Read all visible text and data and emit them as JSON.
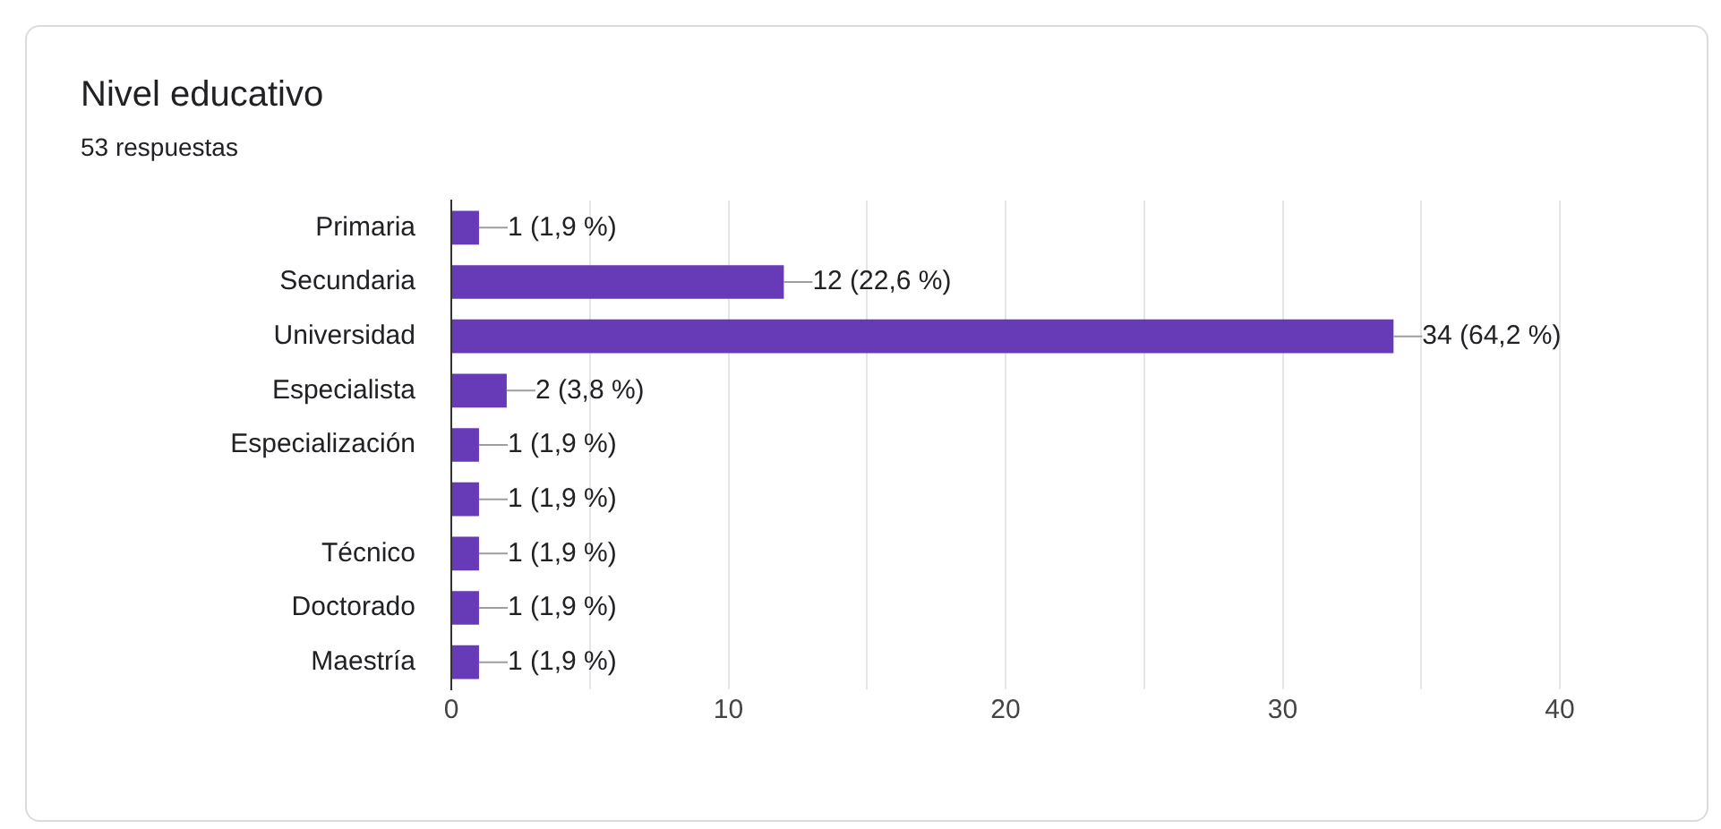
{
  "chart_data": {
    "type": "bar",
    "orientation": "horizontal",
    "title": "Nivel educativo",
    "subtitle": "53 respuestas",
    "categories": [
      "Primaria",
      "Secundaria",
      "Universidad",
      "Especialista",
      "Especialización",
      null,
      "Técnico",
      "Doctorado",
      "Maestría"
    ],
    "values": [
      1,
      12,
      34,
      2,
      1,
      1,
      1,
      1,
      1
    ],
    "value_labels": [
      "1 (1,9 %)",
      "12 (22,6 %)",
      "34 (64,2 %)",
      "2 (3,8 %)",
      "1 (1,9 %)",
      "1 (1,9 %)",
      "1 (1,9 %)",
      "1 (1,9 %)",
      "1 (1,9 %)"
    ],
    "color": "#673ab7",
    "xlim": [
      0,
      40
    ],
    "xticks": [
      0,
      {
        "value": 5,
        "label": null
      },
      10,
      {
        "value": 15,
        "label": null
      },
      20,
      {
        "value": 25,
        "label": null
      },
      30,
      {
        "value": 35,
        "label": null
      },
      40
    ],
    "grid": "x",
    "legend": false
  }
}
